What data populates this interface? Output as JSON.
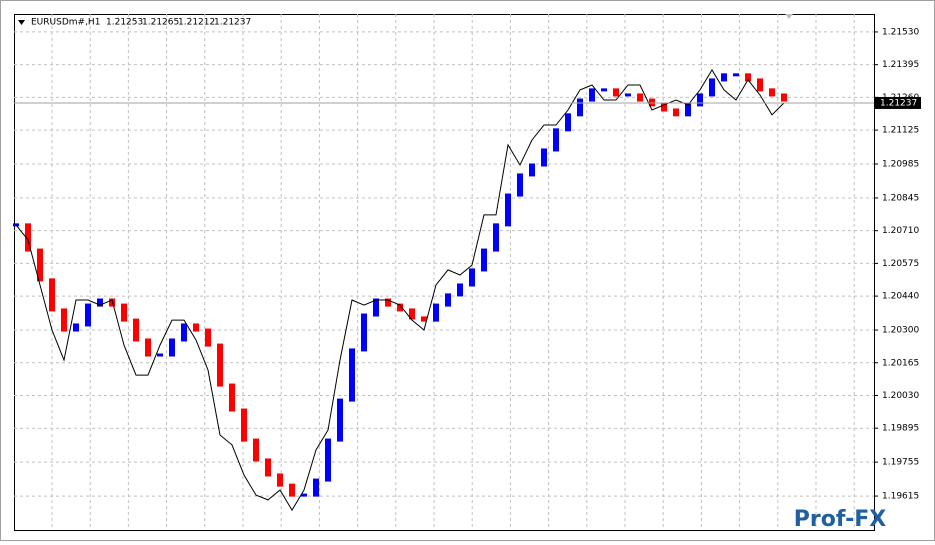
{
  "chart_data": {
    "type": "line",
    "title": "EURUSDm#,H1",
    "ohlc": [
      1.21253,
      1.21265,
      1.21212,
      1.21237
    ],
    "last_price": 1.21237,
    "watermark": "Prof-FX",
    "ylim": [
      1.19475,
      1.21604
    ],
    "yticks": [
      {
        "value": 1.2153,
        "label": "1.21530"
      },
      1.21395,
      {
        "value": 1.2126,
        "label": "1.21260"
      },
      1.21125,
      1.20985,
      1.20845,
      {
        "value": 1.2071,
        "label": "1.20710"
      },
      1.20575,
      {
        "value": 1.2044,
        "label": "1.20440"
      },
      {
        "value": 1.203,
        "label": "1.20300"
      },
      1.20165,
      {
        "value": 1.2003,
        "label": "1.20030"
      },
      1.19895,
      1.19755,
      1.19615
    ],
    "grid": true,
    "line_color": "#000000",
    "up_color": "#0000ff",
    "down_color": "#ff0000",
    "close": [
      1.20734,
      1.20672,
      1.20486,
      1.203,
      1.20176,
      1.20424,
      1.20424,
      1.20403,
      1.20424,
      1.20238,
      1.20114,
      1.20114,
      1.20238,
      1.20341,
      1.20341,
      1.20259,
      1.20135,
      1.19867,
      1.19826,
      1.19702,
      1.19619,
      1.19599,
      1.1964,
      1.19557,
      1.1964,
      1.19805,
      1.19887,
      1.20176,
      1.20424,
      1.20403,
      1.20424,
      1.20424,
      1.20403,
      1.20341,
      1.203,
      1.20486,
      1.20548,
      1.20527,
      1.20568,
      1.20775,
      1.20775,
      1.21064,
      1.20981,
      1.21084,
      1.21146,
      1.21146,
      1.21208,
      1.21291,
      1.21311,
      1.21249,
      1.21249,
      1.21311,
      1.21311,
      1.21208,
      1.21229,
      1.21249,
      1.21229,
      1.21291,
      1.21373,
      1.21291,
      1.21249,
      1.21332,
      1.2127,
      1.21188,
      1.21237
    ],
    "bricks": [
      1.20734,
      1.2063,
      1.20507,
      1.20383,
      1.203,
      1.20321,
      1.20403,
      1.20424,
      1.20403,
      1.20341,
      1.20259,
      1.20197,
      1.20197,
      1.20259,
      1.20321,
      1.203,
      1.20238,
      1.20073,
      1.1997,
      1.19846,
      1.19764,
      1.19702,
      1.1966,
      1.19619,
      1.19619,
      1.19681,
      1.19846,
      1.20011,
      1.20218,
      1.20362,
      1.20424,
      1.20403,
      1.20383,
      1.2035,
      1.20341,
      1.20403,
      1.20445,
      1.20486,
      1.20548,
      1.2063,
      1.20734,
      1.20857,
      1.2094,
      1.20981,
      1.21043,
      1.21126,
      1.21188,
      1.21249,
      1.21291,
      1.21291,
      1.2127,
      1.2127,
      1.21249,
      1.21229,
      1.21208,
      1.21188,
      1.21229,
      1.2127,
      1.21332,
      1.21353,
      1.21353,
      1.21332,
      1.21291,
      1.2127,
      1.21249
    ]
  }
}
